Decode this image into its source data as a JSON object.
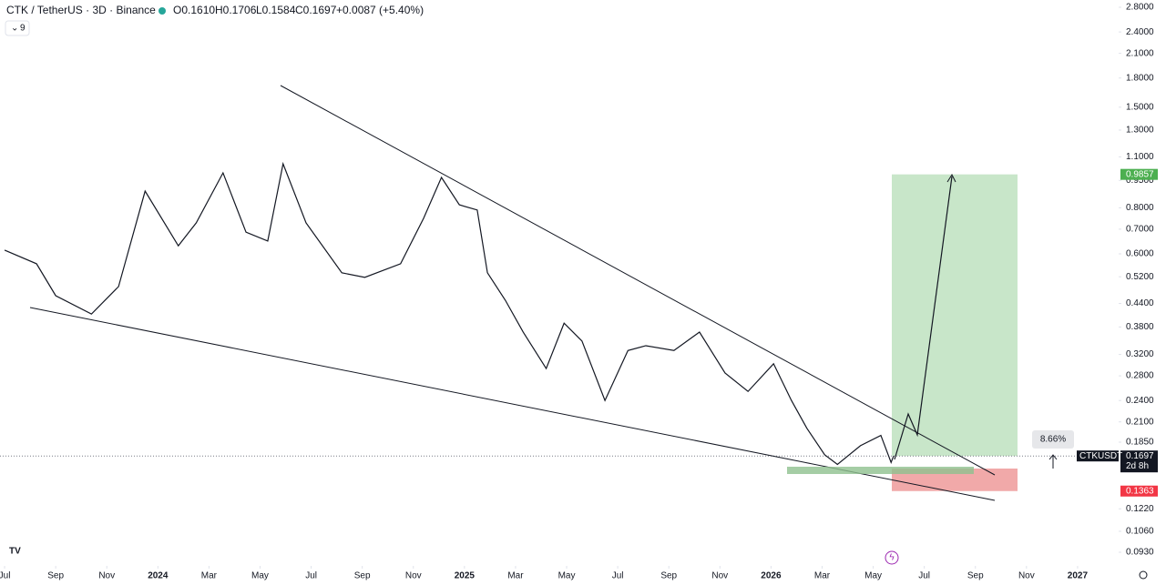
{
  "header": {
    "symbol": "CTK / TetherUS · 3D · Binance",
    "open": "O0.1610",
    "high": "H0.1706",
    "low": "L0.1584",
    "close": "C0.1697",
    "change": "+0.0087 (+5.40%)",
    "indicator": "9"
  },
  "chart_data": {
    "type": "line",
    "log_scale": true,
    "x": [
      0,
      1.25,
      2,
      3.4,
      4.46,
      5.5,
      6.8,
      7.5,
      8.55,
      9.45,
      10.3,
      10.9,
      11.8,
      13.2,
      14.1,
      15.5,
      16.4,
      17.1,
      17.8,
      18.5,
      18.9,
      19.6,
      20.3,
      21.2,
      21.9,
      22.6,
      23.5,
      24.4,
      25.1,
      26.2,
      27.2,
      28.2,
      29.1,
      30.1,
      30.8,
      31.4,
      32.1,
      32.6,
      33.5,
      34.3,
      34.7,
      34.8
    ],
    "series": [
      {
        "name": "CTKUSDT",
        "color": "#131722",
        "values": [
          0.614,
          0.564,
          0.462,
          0.412,
          0.489,
          0.888,
          0.631,
          0.728,
          0.995,
          0.687,
          0.65,
          1.053,
          0.728,
          0.533,
          0.518,
          0.564,
          0.749,
          0.967,
          0.815,
          0.789,
          0.533,
          0.449,
          0.368,
          0.293,
          0.389,
          0.348,
          0.24,
          0.328,
          0.338,
          0.328,
          0.368,
          0.285,
          0.254,
          0.302,
          0.24,
          0.202,
          0.171,
          0.161,
          0.181,
          0.193,
          0.163,
          0.1697
        ]
      }
    ],
    "xlim": [
      -0.18,
      43.5
    ],
    "xticks": [
      {
        "value": 0,
        "label": "Jul"
      },
      {
        "value": 2,
        "label": "Sep"
      },
      {
        "value": 4,
        "label": "Nov"
      },
      {
        "value": 6,
        "label": "2024"
      },
      {
        "value": 8,
        "label": "Mar"
      },
      {
        "value": 10,
        "label": "May"
      },
      {
        "value": 12,
        "label": "Jul"
      },
      {
        "value": 14,
        "label": "Sep"
      },
      {
        "value": 16,
        "label": "Nov"
      },
      {
        "value": 18,
        "label": "2025"
      },
      {
        "value": 20,
        "label": "Mar"
      },
      {
        "value": 22,
        "label": "May"
      },
      {
        "value": 24,
        "label": "Jul"
      },
      {
        "value": 26,
        "label": "Sep"
      },
      {
        "value": 28,
        "label": "Nov"
      },
      {
        "value": 30,
        "label": "2026"
      },
      {
        "value": 32,
        "label": "Mar"
      },
      {
        "value": 34,
        "label": "May"
      },
      {
        "value": 36,
        "label": "Jul"
      },
      {
        "value": 38,
        "label": "Sep"
      },
      {
        "value": 40,
        "label": "Nov"
      },
      {
        "value": 42,
        "label": "2027"
      }
    ],
    "ylim": [
      0.093,
      2.8
    ],
    "yticks": [
      {
        "value": 2.8,
        "label": "2.8000"
      },
      {
        "value": 2.4,
        "label": "2.4000"
      },
      {
        "value": 2.1,
        "label": "2.1000"
      },
      {
        "value": 1.8,
        "label": "1.8000"
      },
      {
        "value": 1.5,
        "label": "1.5000"
      },
      {
        "value": 1.3,
        "label": "1.3000"
      },
      {
        "value": 1.1,
        "label": "1.1000"
      },
      {
        "value": 0.95,
        "label": "0.9500"
      },
      {
        "value": 0.8,
        "label": "0.8000"
      },
      {
        "value": 0.7,
        "label": "0.7000"
      },
      {
        "value": 0.6,
        "label": "0.6000"
      },
      {
        "value": 0.52,
        "label": "0.5200"
      },
      {
        "value": 0.44,
        "label": "0.4400"
      },
      {
        "value": 0.38,
        "label": "0.3800"
      },
      {
        "value": 0.32,
        "label": "0.3200"
      },
      {
        "value": 0.28,
        "label": "0.2800"
      },
      {
        "value": 0.24,
        "label": "0.2400"
      },
      {
        "value": 0.21,
        "label": "0.2100"
      },
      {
        "value": 0.185,
        "label": "0.1850"
      },
      {
        "value": 0.122,
        "label": "0.1220"
      },
      {
        "value": 0.106,
        "label": "0.1060"
      },
      {
        "value": 0.093,
        "label": "0.0930"
      }
    ],
    "position": {
      "entry": 0.1697,
      "target": 0.9857,
      "stop": 0.1363,
      "target_label": "0.9857",
      "entry_label": "0.1697",
      "stop_label": "0.1363",
      "percent": "8.66%",
      "countdown": "2d 8h"
    }
  }
}
